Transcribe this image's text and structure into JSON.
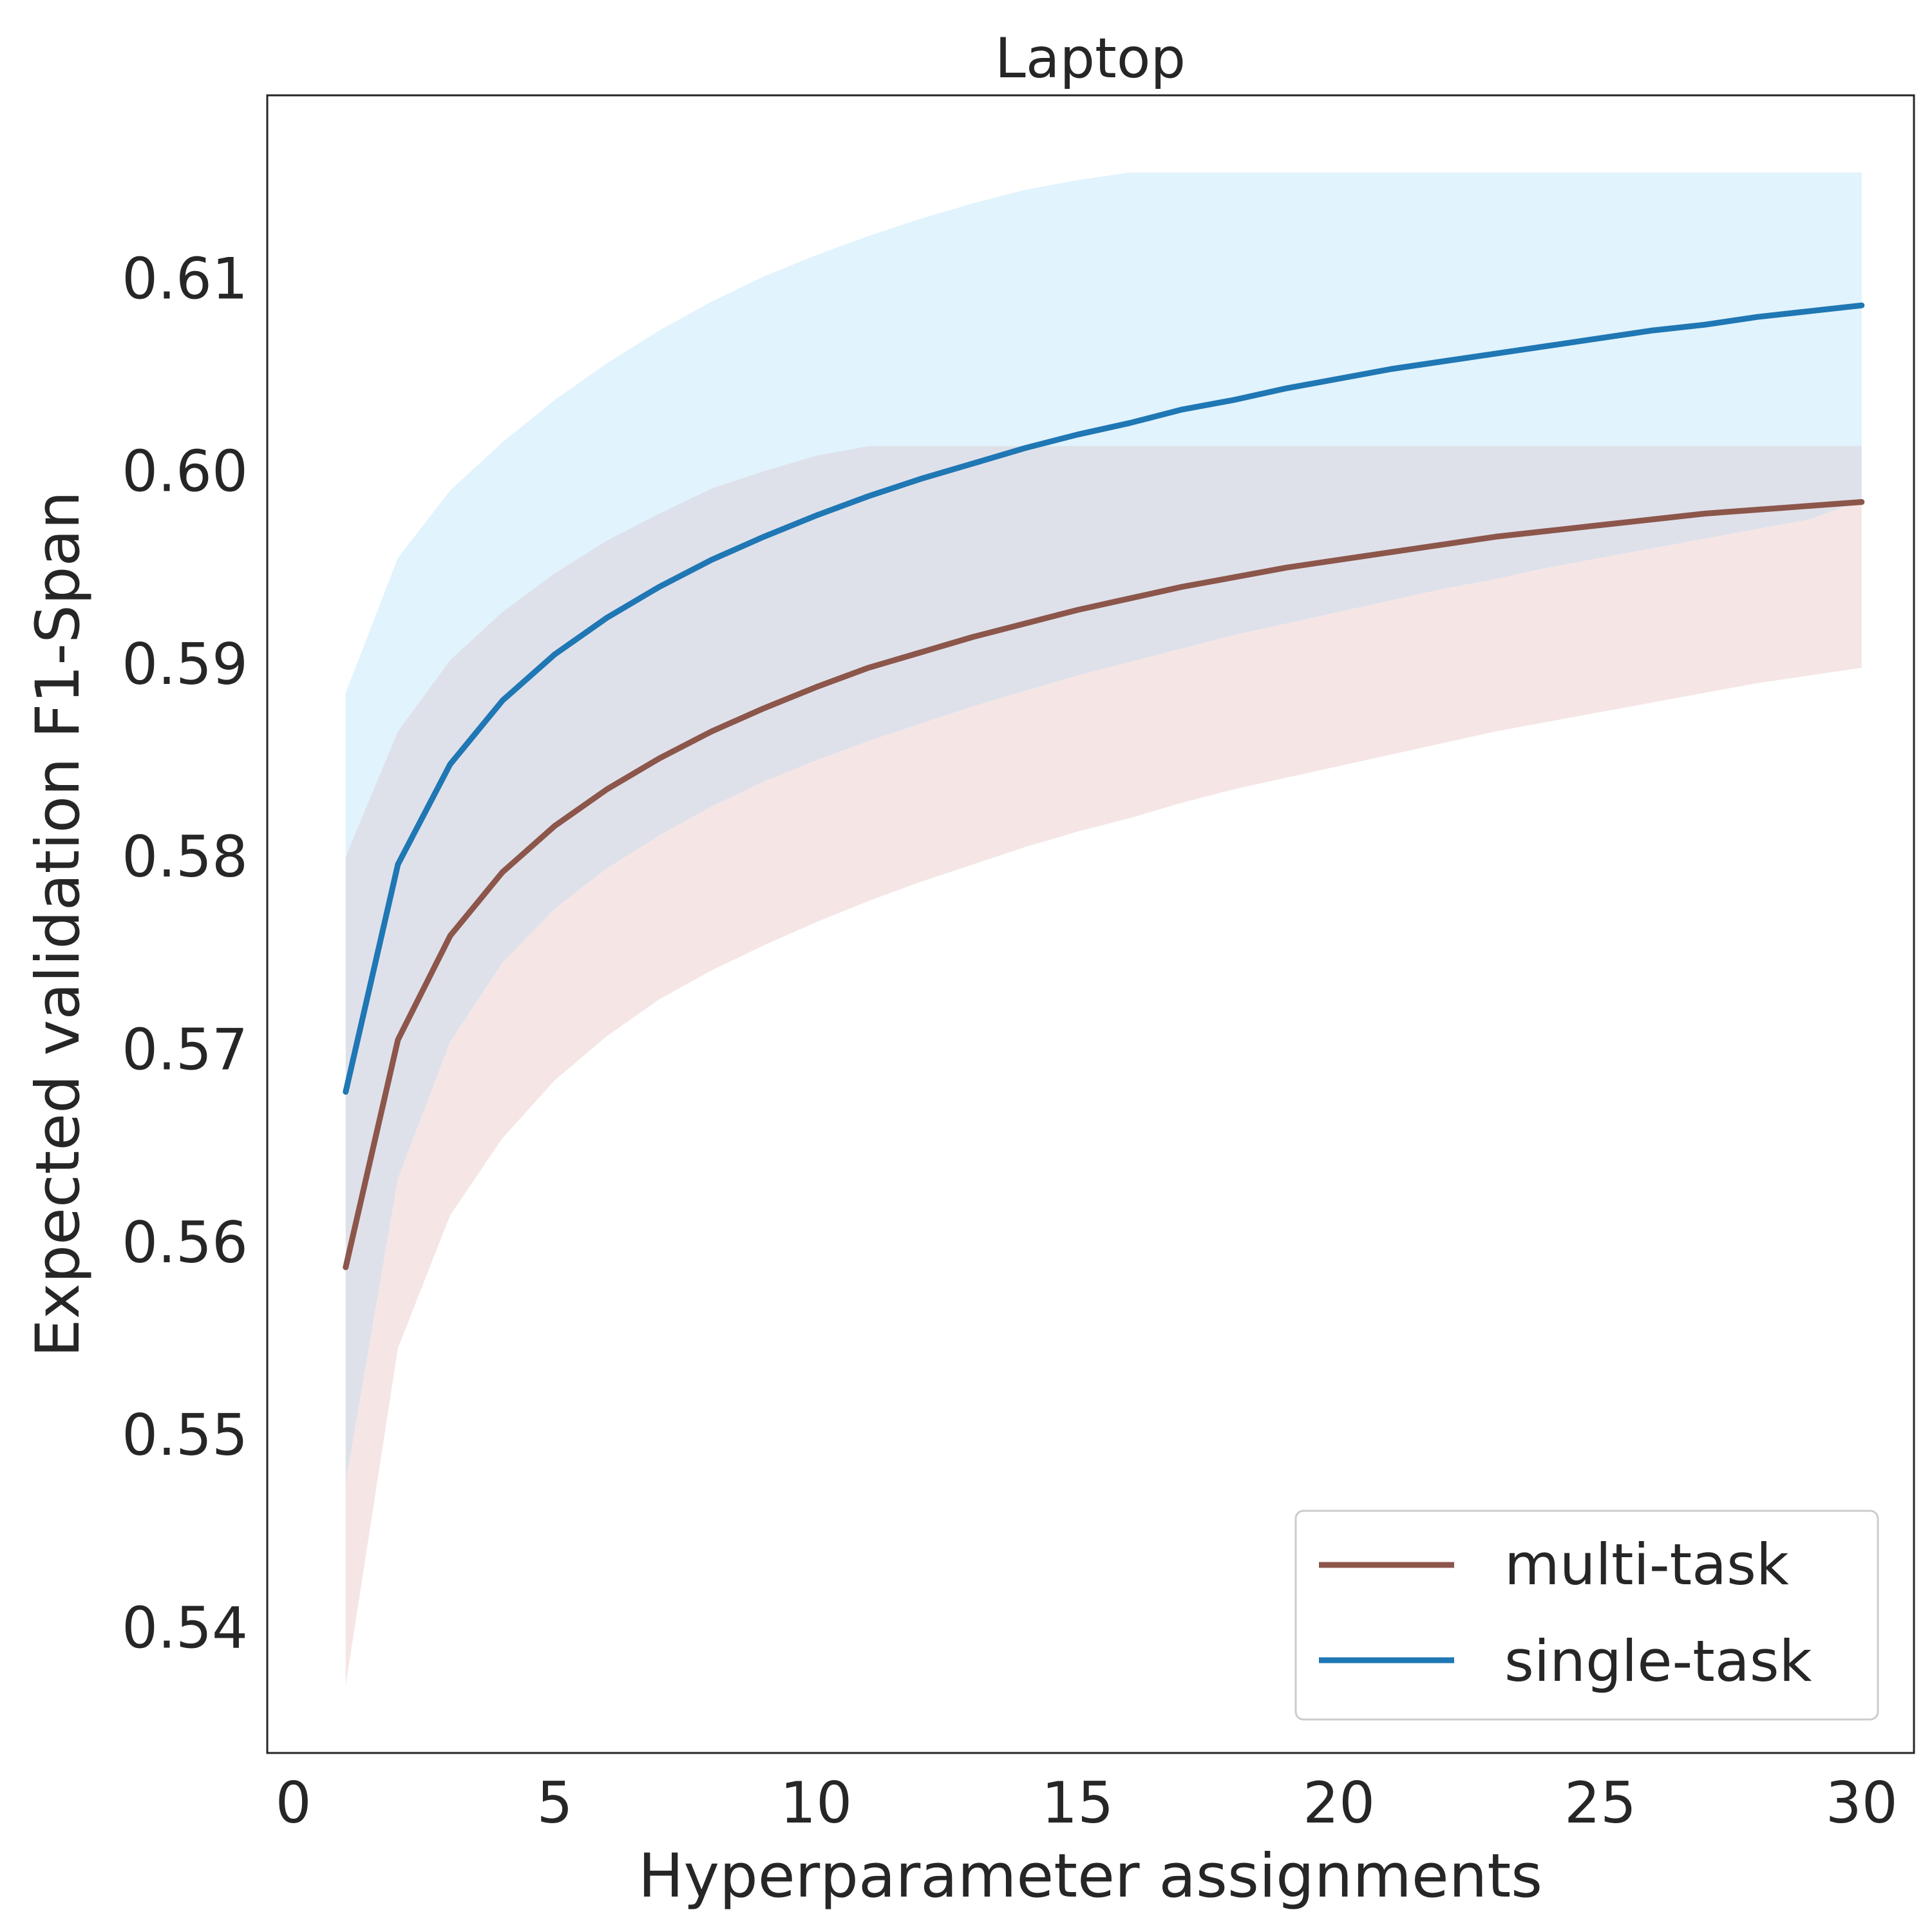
{
  "chart_data": {
    "type": "line",
    "title": "Laptop",
    "xlabel": "Hyperparameter assignments",
    "ylabel": "Expected validation F1-Span",
    "xlim": [
      -0.5,
      31.0
    ],
    "ylim": [
      0.5335,
      0.6195
    ],
    "xticks": [
      0,
      5,
      10,
      15,
      20,
      25,
      30
    ],
    "yticks": [
      0.54,
      0.55,
      0.56,
      0.57,
      0.58,
      0.59,
      0.6,
      0.61
    ],
    "ytick_labels": [
      "0.54",
      "0.55",
      "0.56",
      "0.57",
      "0.58",
      "0.59",
      "0.60",
      "0.61"
    ],
    "grid": false,
    "legend_position": "lower-right",
    "x": [
      1,
      2,
      3,
      4,
      5,
      6,
      7,
      8,
      9,
      10,
      11,
      12,
      13,
      14,
      15,
      16,
      17,
      18,
      19,
      20,
      21,
      22,
      23,
      24,
      25,
      26,
      27,
      28,
      29,
      30
    ],
    "series": [
      {
        "name": "multi-task",
        "color": "#8c564b",
        "band_color": "#f5e6e5",
        "values": [
          0.5587,
          0.5705,
          0.5759,
          0.5792,
          0.5816,
          0.5835,
          0.5851,
          0.5865,
          0.5877,
          0.5888,
          0.5898,
          0.5906,
          0.5914,
          0.5921,
          0.5928,
          0.5934,
          0.594,
          0.5945,
          0.595,
          0.5954,
          0.5958,
          0.5962,
          0.5966,
          0.5969,
          0.5972,
          0.5975,
          0.5978,
          0.598,
          0.5982,
          0.5984
        ],
        "lower": [
          0.537,
          0.5545,
          0.5614,
          0.5654,
          0.5684,
          0.5707,
          0.5726,
          0.5741,
          0.5754,
          0.5766,
          0.5777,
          0.5787,
          0.5796,
          0.5805,
          0.5813,
          0.582,
          0.5828,
          0.5835,
          0.5841,
          0.5847,
          0.5853,
          0.5859,
          0.5865,
          0.587,
          0.5875,
          0.588,
          0.5885,
          0.589,
          0.5894,
          0.5898
        ],
        "upper": [
          0.5475,
          0.5633,
          0.5704,
          0.5745,
          0.5773,
          0.5794,
          0.5811,
          0.5826,
          0.5839,
          0.585,
          0.586,
          0.5869,
          0.5878,
          0.5886,
          0.5894,
          0.5901,
          0.5908,
          0.5915,
          0.5921,
          0.5927,
          0.5933,
          0.5939,
          0.5944,
          0.595,
          0.5955,
          0.596,
          0.5965,
          0.597,
          0.5975,
          0.5985
        ]
      },
      {
        "name": "single-task",
        "color": "#1f77b4",
        "band_color": "#e1f3fd",
        "values": [
          0.5678,
          0.5796,
          0.5848,
          0.5881,
          0.5905,
          0.5924,
          0.594,
          0.5954,
          0.5966,
          0.5977,
          0.5987,
          0.5996,
          0.6004,
          0.6012,
          0.6019,
          0.6025,
          0.6032,
          0.6037,
          0.6043,
          0.6048,
          0.6053,
          0.6057,
          0.6061,
          0.6065,
          0.6069,
          0.6073,
          0.6076,
          0.608,
          0.6083,
          0.6086
        ],
        "lower": [
          0.5475,
          0.5633,
          0.5704,
          0.5745,
          0.5773,
          0.5794,
          0.5811,
          0.5826,
          0.5839,
          0.585,
          0.586,
          0.5869,
          0.5878,
          0.5886,
          0.5894,
          0.5901,
          0.5908,
          0.5915,
          0.5921,
          0.5927,
          0.5933,
          0.5939,
          0.5944,
          0.595,
          0.5955,
          0.596,
          0.5965,
          0.597,
          0.5975,
          0.5985
        ],
        "upper": [
          0.5885,
          0.5955,
          0.599,
          0.6015,
          0.6037,
          0.6056,
          0.6073,
          0.6088,
          0.6101,
          0.6112,
          0.6122,
          0.6131,
          0.6139,
          0.6146,
          0.6151,
          0.6155,
          0.6155,
          0.6155,
          0.6155,
          0.6155,
          0.6155,
          0.6155,
          0.6155,
          0.6155,
          0.6155,
          0.6155,
          0.6155,
          0.6155,
          0.6155,
          0.6155
        ]
      }
    ],
    "overlap_band": {
      "color": "#dfe1ea",
      "upper": [
        0.58,
        0.5865,
        0.5902,
        0.5927,
        0.5947,
        0.5964,
        0.5978,
        0.5991,
        0.6,
        0.6008,
        0.6013,
        0.6013,
        0.6013,
        0.6013,
        0.6013,
        0.6013,
        0.6013,
        0.6013,
        0.6013,
        0.6013,
        0.6013,
        0.6013,
        0.6013,
        0.6013,
        0.6013,
        0.6013,
        0.6013,
        0.6013,
        0.6013,
        0.6013
      ]
    }
  }
}
